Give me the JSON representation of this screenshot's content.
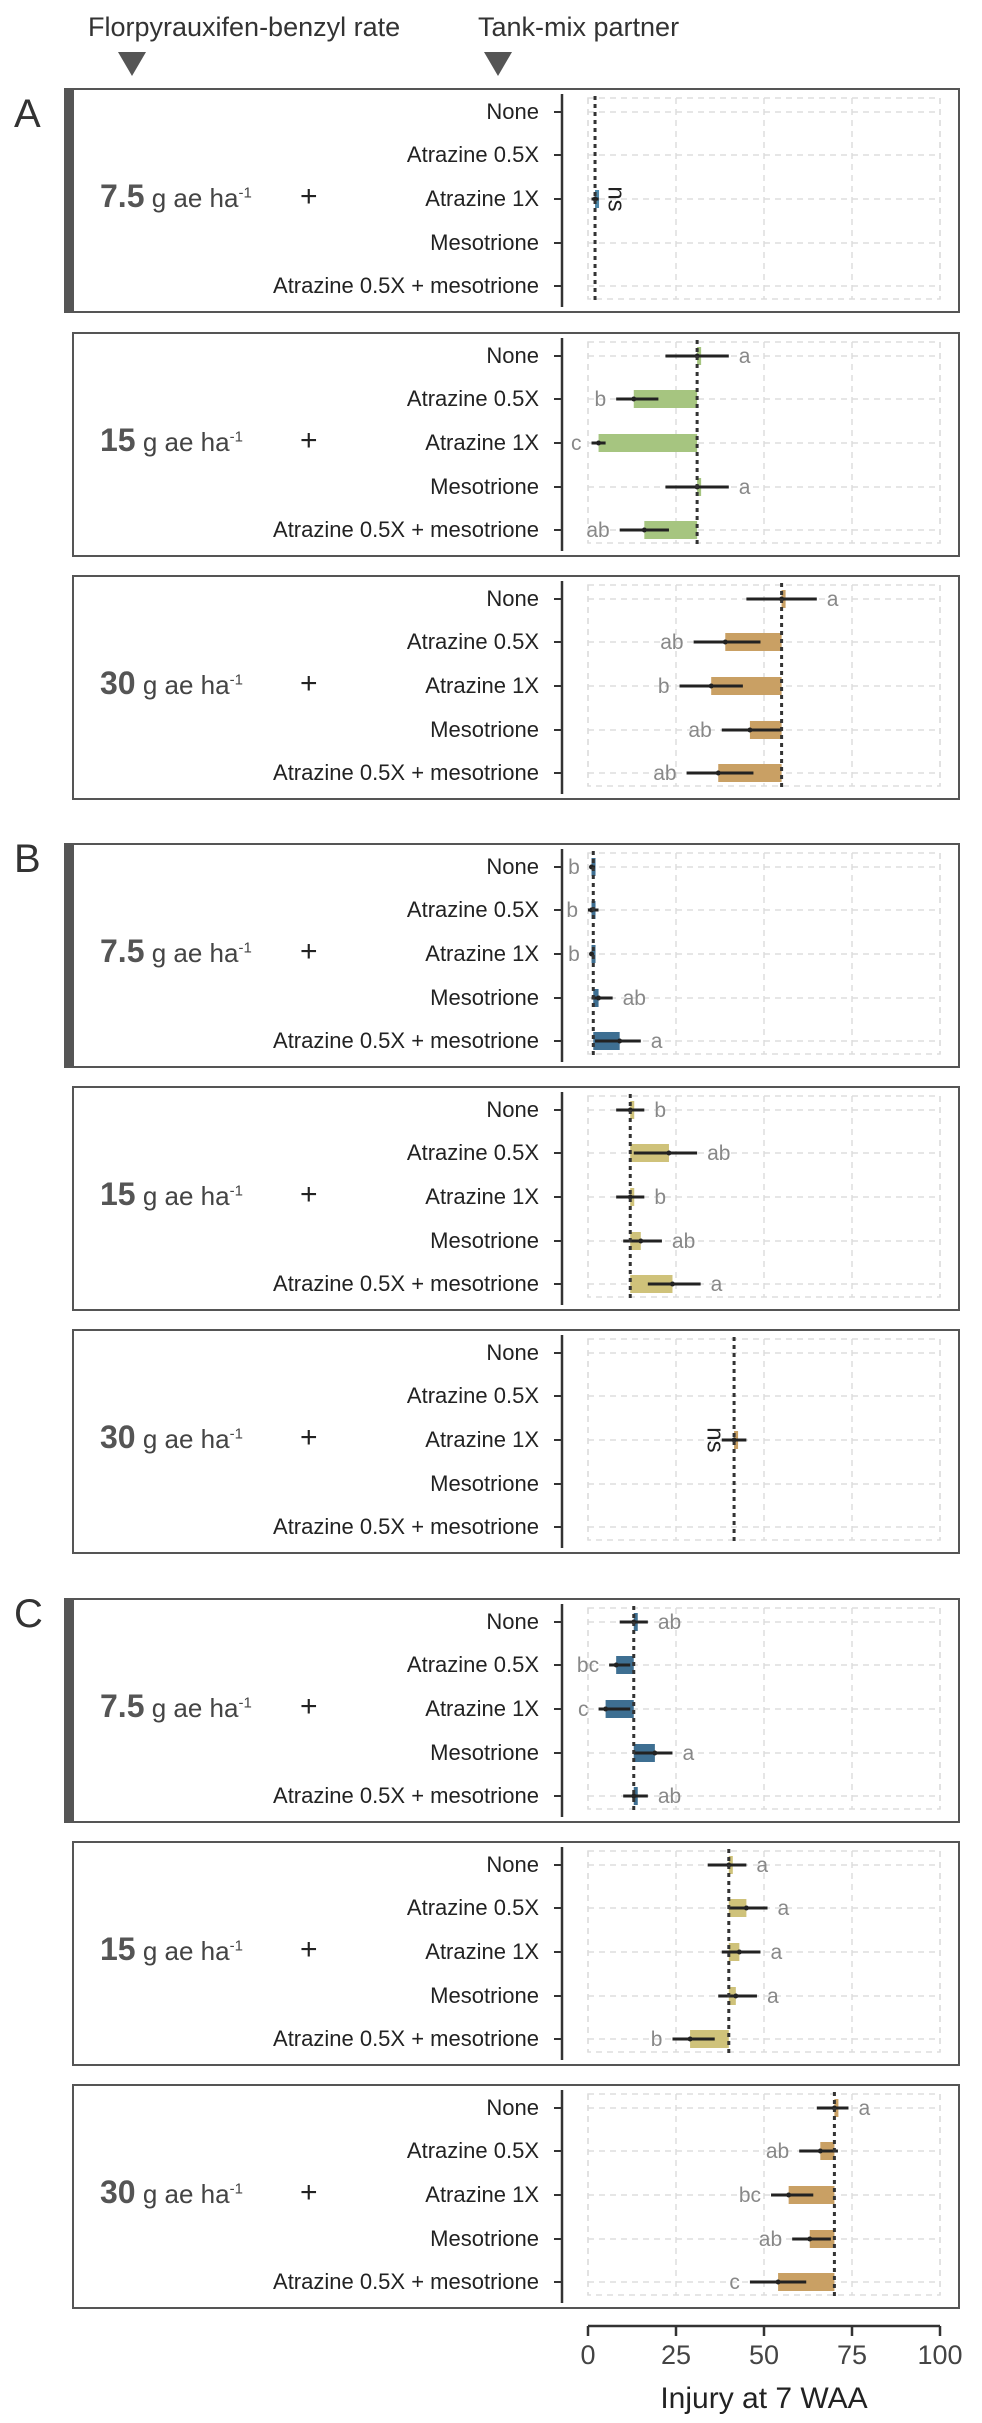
{
  "header": {
    "rate_label": "Florpyrauxifen-benzyl rate",
    "partner_label": "Tank-mix partner"
  },
  "rate_unit": "g ae ha",
  "rate_unit_sup": "-1",
  "plus_sign": "+",
  "chart_data": {
    "type": "bar",
    "xlabel": "Injury at 7 WAA",
    "xlim": [
      0,
      100
    ],
    "xticks": [
      "0",
      "25",
      "50",
      "75",
      "100"
    ],
    "tick_values": [
      0,
      25,
      50,
      75,
      100
    ],
    "treatments": [
      "None",
      "Atrazine 0.5X",
      "Atrazine 1X",
      "Mesotrione",
      "Atrazine 0.5X + mesotrione"
    ],
    "colors": {
      "7.5": "#4e87a8",
      "15": "#a6c580",
      "30": "#c9a064",
      "15B": "#cfc27a"
    },
    "sections": [
      {
        "letter": "A",
        "panels": [
          {
            "rate": "7.5",
            "color": "#4e87a8",
            "ref": 2,
            "ns": "ns",
            "items": [
              {
                "value": null,
                "lo": null,
                "hi": null,
                "letter": ""
              },
              {
                "value": null,
                "lo": null,
                "hi": null,
                "letter": ""
              },
              {
                "value": 2,
                "lo": 1,
                "hi": 3,
                "letter": ""
              },
              {
                "value": null,
                "lo": null,
                "hi": null,
                "letter": ""
              },
              {
                "value": null,
                "lo": null,
                "hi": null,
                "letter": ""
              }
            ]
          },
          {
            "rate": "15",
            "color": "#a6c580",
            "ref": 31,
            "ns": "",
            "items": [
              {
                "value": 31,
                "lo": 22,
                "hi": 40,
                "letter": "a"
              },
              {
                "value": 13,
                "lo": 8,
                "hi": 20,
                "letter": "b"
              },
              {
                "value": 3,
                "lo": 1,
                "hi": 5,
                "letter": "c"
              },
              {
                "value": 31,
                "lo": 22,
                "hi": 40,
                "letter": "a"
              },
              {
                "value": 16,
                "lo": 9,
                "hi": 23,
                "letter": "ab"
              }
            ]
          },
          {
            "rate": "30",
            "color": "#c9a064",
            "ref": 55,
            "ns": "",
            "items": [
              {
                "value": 55,
                "lo": 45,
                "hi": 65,
                "letter": "a"
              },
              {
                "value": 39,
                "lo": 30,
                "hi": 49,
                "letter": "ab"
              },
              {
                "value": 35,
                "lo": 26,
                "hi": 44,
                "letter": "b"
              },
              {
                "value": 46,
                "lo": 38,
                "hi": 55,
                "letter": "ab"
              },
              {
                "value": 37,
                "lo": 28,
                "hi": 47,
                "letter": "ab"
              }
            ]
          }
        ]
      },
      {
        "letter": "B",
        "panels": [
          {
            "rate": "7.5",
            "color": "#3e6f92",
            "ref": 1.5,
            "ns": "",
            "items": [
              {
                "value": 1,
                "lo": 0.5,
                "hi": 2,
                "letter": "b"
              },
              {
                "value": 1,
                "lo": 0,
                "hi": 3,
                "letter": "b"
              },
              {
                "value": 1,
                "lo": 0.5,
                "hi": 1.5,
                "letter": "b"
              },
              {
                "value": 3,
                "lo": 1,
                "hi": 7,
                "letter": "ab"
              },
              {
                "value": 9,
                "lo": 2,
                "hi": 15,
                "letter": "a"
              }
            ]
          },
          {
            "rate": "15",
            "color": "#cfc27a",
            "ref": 12,
            "ns": "",
            "items": [
              {
                "value": 12,
                "lo": 8,
                "hi": 16,
                "letter": "b"
              },
              {
                "value": 23,
                "lo": 13,
                "hi": 31,
                "letter": "ab"
              },
              {
                "value": 12,
                "lo": 8,
                "hi": 16,
                "letter": "b"
              },
              {
                "value": 15,
                "lo": 10,
                "hi": 21,
                "letter": "ab"
              },
              {
                "value": 24,
                "lo": 17,
                "hi": 32,
                "letter": "a"
              }
            ]
          },
          {
            "rate": "30",
            "color": "#c9a064",
            "ref": 41.5,
            "ns": "ns",
            "items": [
              {
                "value": null,
                "lo": null,
                "hi": null,
                "letter": ""
              },
              {
                "value": null,
                "lo": null,
                "hi": null,
                "letter": ""
              },
              {
                "value": 41.5,
                "lo": 38,
                "hi": 45,
                "letter": ""
              },
              {
                "value": null,
                "lo": null,
                "hi": null,
                "letter": ""
              },
              {
                "value": null,
                "lo": null,
                "hi": null,
                "letter": ""
              }
            ]
          }
        ]
      },
      {
        "letter": "C",
        "panels": [
          {
            "rate": "7.5",
            "color": "#3e6f92",
            "ref": 13,
            "ns": "",
            "items": [
              {
                "value": 13,
                "lo": 9,
                "hi": 17,
                "letter": "ab"
              },
              {
                "value": 8,
                "lo": 6,
                "hi": 12,
                "letter": "bc"
              },
              {
                "value": 5,
                "lo": 3,
                "hi": 12,
                "letter": "c"
              },
              {
                "value": 19,
                "lo": 13,
                "hi": 24,
                "letter": "a"
              },
              {
                "value": 13,
                "lo": 10,
                "hi": 17,
                "letter": "ab"
              }
            ]
          },
          {
            "rate": "15",
            "color": "#cfc27a",
            "ref": 40,
            "ns": "",
            "items": [
              {
                "value": 40,
                "lo": 34,
                "hi": 45,
                "letter": "a"
              },
              {
                "value": 45,
                "lo": 40,
                "hi": 51,
                "letter": "a"
              },
              {
                "value": 43,
                "lo": 38,
                "hi": 49,
                "letter": "a"
              },
              {
                "value": 42,
                "lo": 37,
                "hi": 48,
                "letter": "a"
              },
              {
                "value": 29,
                "lo": 24,
                "hi": 36,
                "letter": "b"
              }
            ]
          },
          {
            "rate": "30",
            "color": "#c9a064",
            "ref": 70,
            "ns": "",
            "items": [
              {
                "value": 70,
                "lo": 65,
                "hi": 74,
                "letter": "a"
              },
              {
                "value": 66,
                "lo": 60,
                "hi": 71,
                "letter": "ab"
              },
              {
                "value": 57,
                "lo": 52,
                "hi": 64,
                "letter": "bc"
              },
              {
                "value": 63,
                "lo": 58,
                "hi": 69,
                "letter": "ab"
              },
              {
                "value": 54,
                "lo": 46,
                "hi": 62,
                "letter": "c"
              }
            ]
          }
        ]
      }
    ]
  }
}
